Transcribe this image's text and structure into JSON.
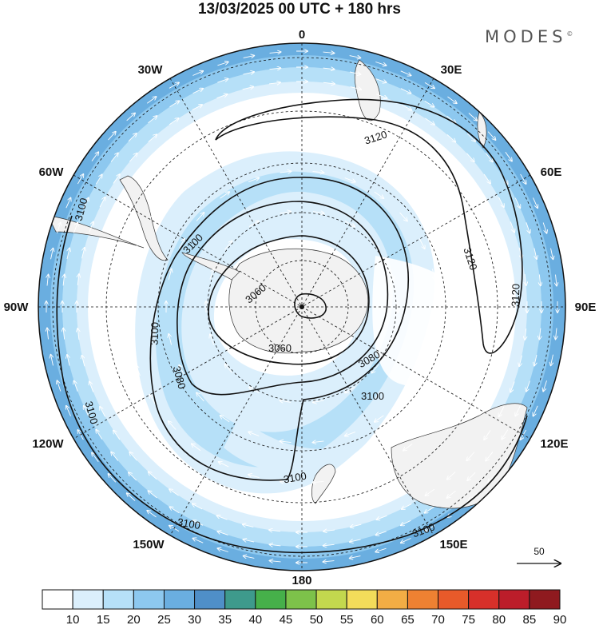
{
  "header": {
    "title": "13/03/2025  00 UTC  + 180 hrs",
    "brand": "MODES",
    "brand_mark": "©"
  },
  "longitude_labels": [
    {
      "id": "lon-0",
      "text": "0"
    },
    {
      "id": "lon-30e",
      "text": "30E"
    },
    {
      "id": "lon-60e",
      "text": "60E"
    },
    {
      "id": "lon-90e",
      "text": "90E"
    },
    {
      "id": "lon-120e",
      "text": "120E"
    },
    {
      "id": "lon-150e",
      "text": "150E"
    },
    {
      "id": "lon-180",
      "text": "180"
    },
    {
      "id": "lon-150w",
      "text": "150W"
    },
    {
      "id": "lon-120w",
      "text": "120W"
    },
    {
      "id": "lon-90w",
      "text": "90W"
    },
    {
      "id": "lon-60w",
      "text": "60W"
    },
    {
      "id": "lon-30w",
      "text": "30W"
    }
  ],
  "contour_labels": [
    {
      "id": "c1",
      "text": "3120"
    },
    {
      "id": "c2",
      "text": "3120"
    },
    {
      "id": "c3",
      "text": "3120"
    },
    {
      "id": "c4",
      "text": "3100"
    },
    {
      "id": "c5",
      "text": "3100"
    },
    {
      "id": "c6",
      "text": "3100"
    },
    {
      "id": "c7",
      "text": "3100"
    },
    {
      "id": "c8",
      "text": "3100"
    },
    {
      "id": "c9",
      "text": "3100"
    },
    {
      "id": "c10",
      "text": "3100"
    },
    {
      "id": "c11",
      "text": "3100"
    },
    {
      "id": "c12",
      "text": "3080"
    },
    {
      "id": "c13",
      "text": "3080"
    },
    {
      "id": "c14",
      "text": "3060"
    },
    {
      "id": "c15",
      "text": "3060"
    }
  ],
  "vector_reference": {
    "value": "50"
  },
  "colorbar": {
    "ticks": [
      "10",
      "15",
      "20",
      "25",
      "30",
      "35",
      "40",
      "45",
      "50",
      "55",
      "60",
      "65",
      "70",
      "75",
      "80",
      "85",
      "90"
    ],
    "colors": [
      "#ffffff",
      "#dbeffc",
      "#b6e0f8",
      "#8dc8ef",
      "#6aaee0",
      "#4f8fc8",
      "#3e9a8c",
      "#46b04a",
      "#7dc24a",
      "#c3d84e",
      "#f3dc5a",
      "#f2ad45",
      "#ee8132",
      "#e85a2a",
      "#d7302a",
      "#bc1d2a",
      "#8f1a1f"
    ]
  }
}
